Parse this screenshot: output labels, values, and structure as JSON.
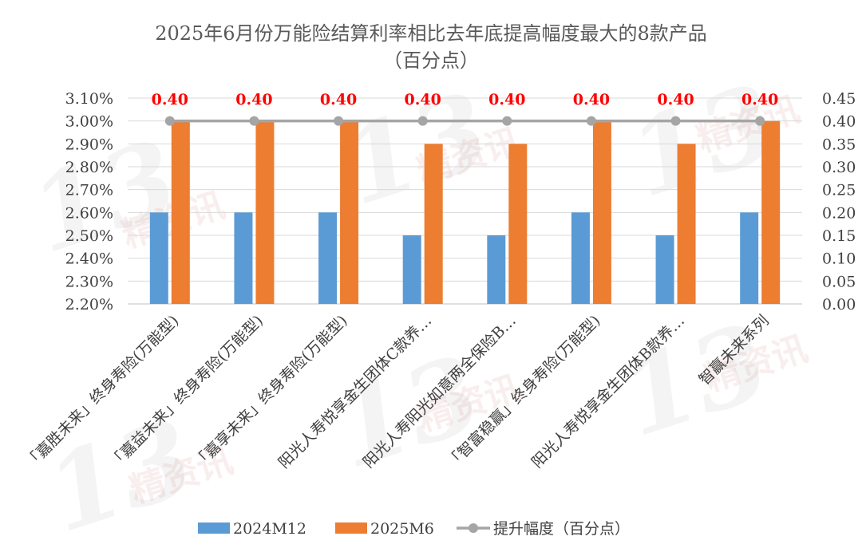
{
  "chart_data": {
    "type": "bar",
    "title": "2025年6月份万能险结算利率相比去年底提高幅度最大的8款产品",
    "subtitle": "（百分点）",
    "categories": [
      "「嘉胜未来」终身寿险(万能型)",
      "「嘉益未来」终身寿险(万能型)",
      "「嘉享未来」终身寿险(万能型)",
      "阳光人寿悦享金生团体C款养…",
      "阳光人寿阳光如意两全保险B…",
      "「智富稳赢」终身寿险(万能型)",
      "阳光人寿悦享金生团体B款养…",
      "智赢未来系列"
    ],
    "series": [
      {
        "name": "2024M12",
        "axis": "left",
        "color": "#5B9BD5",
        "values": [
          2.6,
          2.6,
          2.6,
          2.5,
          2.5,
          2.6,
          2.5,
          2.6
        ]
      },
      {
        "name": "2025M6",
        "axis": "left",
        "color": "#ED7D31",
        "values": [
          3.0,
          3.0,
          3.0,
          2.9,
          2.9,
          3.0,
          2.9,
          3.0
        ]
      },
      {
        "name": "提升幅度（百分点）",
        "axis": "right",
        "type": "line",
        "color": "#A5A5A5",
        "values": [
          0.4,
          0.4,
          0.4,
          0.4,
          0.4,
          0.4,
          0.4,
          0.4
        ]
      }
    ],
    "data_labels": [
      "0.40",
      "0.40",
      "0.40",
      "0.40",
      "0.40",
      "0.40",
      "0.40",
      "0.40"
    ],
    "left_axis": {
      "min": 2.2,
      "max": 3.1,
      "step": 0.1,
      "ticks": [
        "2.20%",
        "2.30%",
        "2.40%",
        "2.50%",
        "2.60%",
        "2.70%",
        "2.80%",
        "2.90%",
        "3.00%",
        "3.10%"
      ]
    },
    "right_axis": {
      "min": 0.0,
      "max": 0.45,
      "step": 0.05,
      "ticks": [
        "0.00",
        "0.05",
        "0.10",
        "0.15",
        "0.20",
        "0.25",
        "0.30",
        "0.35",
        "0.40",
        "0.45"
      ]
    },
    "grid": true,
    "legend_position": "bottom",
    "label_color": "#FF0000"
  },
  "watermark": {
    "number": "13",
    "text": "精资讯"
  }
}
